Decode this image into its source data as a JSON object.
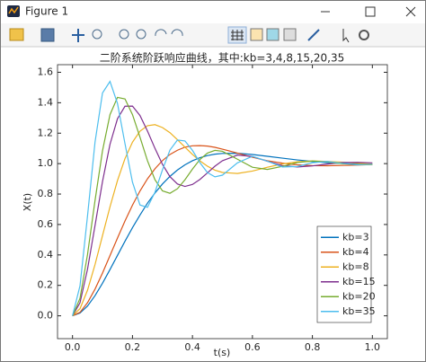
{
  "window": {
    "title": "Figure 1"
  },
  "chart_data": {
    "type": "line",
    "title": "二阶系统阶跃响应曲线，其中:kb=3,4,8,15,20,35",
    "x_label": "t(s)",
    "y_label": "X(t)",
    "x": [
      0,
      0.025,
      0.05,
      0.075,
      0.1,
      0.125,
      0.15,
      0.175,
      0.2,
      0.225,
      0.25,
      0.275,
      0.3,
      0.325,
      0.35,
      0.375,
      0.4,
      0.425,
      0.45,
      0.475,
      0.5,
      0.55,
      0.6,
      0.65,
      0.7,
      0.75,
      0.8,
      0.85,
      0.9,
      0.95,
      1.0
    ],
    "series": [
      {
        "name": "kb=3",
        "color": "#0072bd",
        "values": [
          0,
          0.018,
          0.064,
          0.132,
          0.214,
          0.304,
          0.397,
          0.49,
          0.579,
          0.662,
          0.74,
          0.807,
          0.866,
          0.916,
          0.958,
          0.992,
          1.019,
          1.039,
          1.053,
          1.062,
          1.067,
          1.068,
          1.06,
          1.048,
          1.036,
          1.024,
          1.014,
          1.006,
          1.001,
          0.997,
          0.996
        ]
      },
      {
        "name": "kb=4",
        "color": "#d95319",
        "values": [
          0,
          0.023,
          0.086,
          0.175,
          0.281,
          0.396,
          0.511,
          0.623,
          0.727,
          0.82,
          0.9,
          0.966,
          1.02,
          1.06,
          1.088,
          1.108,
          1.117,
          1.118,
          1.115,
          1.107,
          1.095,
          1.069,
          1.042,
          1.019,
          1.003,
          0.992,
          0.987,
          0.986,
          0.988,
          0.99,
          0.994
        ]
      },
      {
        "name": "kb=8",
        "color": "#edb120",
        "values": [
          0,
          0.047,
          0.168,
          0.336,
          0.527,
          0.716,
          0.889,
          1.033,
          1.141,
          1.213,
          1.249,
          1.256,
          1.237,
          1.203,
          1.157,
          1.108,
          1.06,
          1.018,
          0.983,
          0.957,
          0.942,
          0.935,
          0.951,
          0.976,
          0.998,
          1.012,
          1.017,
          1.014,
          1.009,
          1.002,
          0.998
        ]
      },
      {
        "name": "kb=15",
        "color": "#7e2f8e",
        "values": [
          0,
          0.086,
          0.306,
          0.592,
          0.882,
          1.127,
          1.295,
          1.377,
          1.378,
          1.316,
          1.214,
          1.1,
          0.995,
          0.914,
          0.866,
          0.85,
          0.863,
          0.896,
          0.939,
          0.983,
          1.019,
          1.056,
          1.047,
          1.015,
          0.987,
          0.978,
          0.985,
          0.997,
          1.007,
          1.008,
          1.005
        ]
      },
      {
        "name": "kb=20",
        "color": "#77ac30",
        "values": [
          0,
          0.115,
          0.402,
          0.756,
          1.084,
          1.322,
          1.435,
          1.425,
          1.322,
          1.174,
          1.019,
          0.894,
          0.821,
          0.805,
          0.835,
          0.894,
          0.964,
          1.027,
          1.069,
          1.087,
          1.081,
          1.029,
          0.976,
          0.962,
          0.982,
          1.007,
          1.017,
          1.011,
          0.999,
          0.993,
          0.994
        ]
      },
      {
        "name": "kb=35",
        "color": "#4dbeee",
        "values": [
          0,
          0.197,
          0.655,
          1.14,
          1.464,
          1.54,
          1.395,
          1.131,
          0.878,
          0.728,
          0.713,
          0.812,
          0.959,
          1.089,
          1.155,
          1.149,
          1.087,
          1.006,
          0.941,
          0.913,
          0.924,
          1.005,
          1.048,
          1.016,
          0.978,
          0.981,
          1.006,
          1.014,
          1.002,
          0.992,
          0.996
        ]
      }
    ],
    "xlim": [
      -0.05,
      1.05
    ],
    "ylim": [
      -0.15,
      1.65
    ],
    "xticks": [
      {
        "value": 0,
        "label": "0.0"
      },
      0.2,
      0.4,
      0.6,
      0.8,
      {
        "value": 1,
        "label": "1.0"
      }
    ],
    "yticks": [
      {
        "value": 0,
        "label": "0.0"
      },
      0.2,
      0.4,
      0.6,
      0.8,
      {
        "value": 1,
        "label": "1.0"
      },
      1.2,
      1.4,
      1.6
    ],
    "grid": false,
    "legend": "lower right"
  }
}
